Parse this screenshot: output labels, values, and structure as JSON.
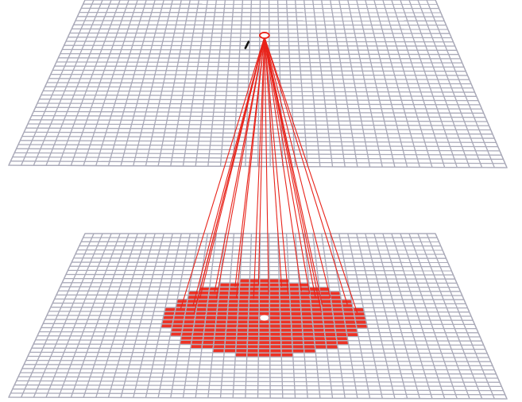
{
  "diagram": {
    "grid": {
      "columns": 40,
      "rows": 40
    },
    "upper_plane": {
      "label": "",
      "marked_cell": {
        "col": 20,
        "row": 8
      }
    },
    "lower_plane": {
      "center_cell": {
        "col": 20,
        "row": 20
      },
      "highlight_radius_cells": 9.4
    },
    "colors": {
      "grid": "#a9a9b8",
      "highlight": "#ee3224",
      "ray": "#e8231a",
      "marker": "#e8231a",
      "tick": "#111111"
    }
  }
}
